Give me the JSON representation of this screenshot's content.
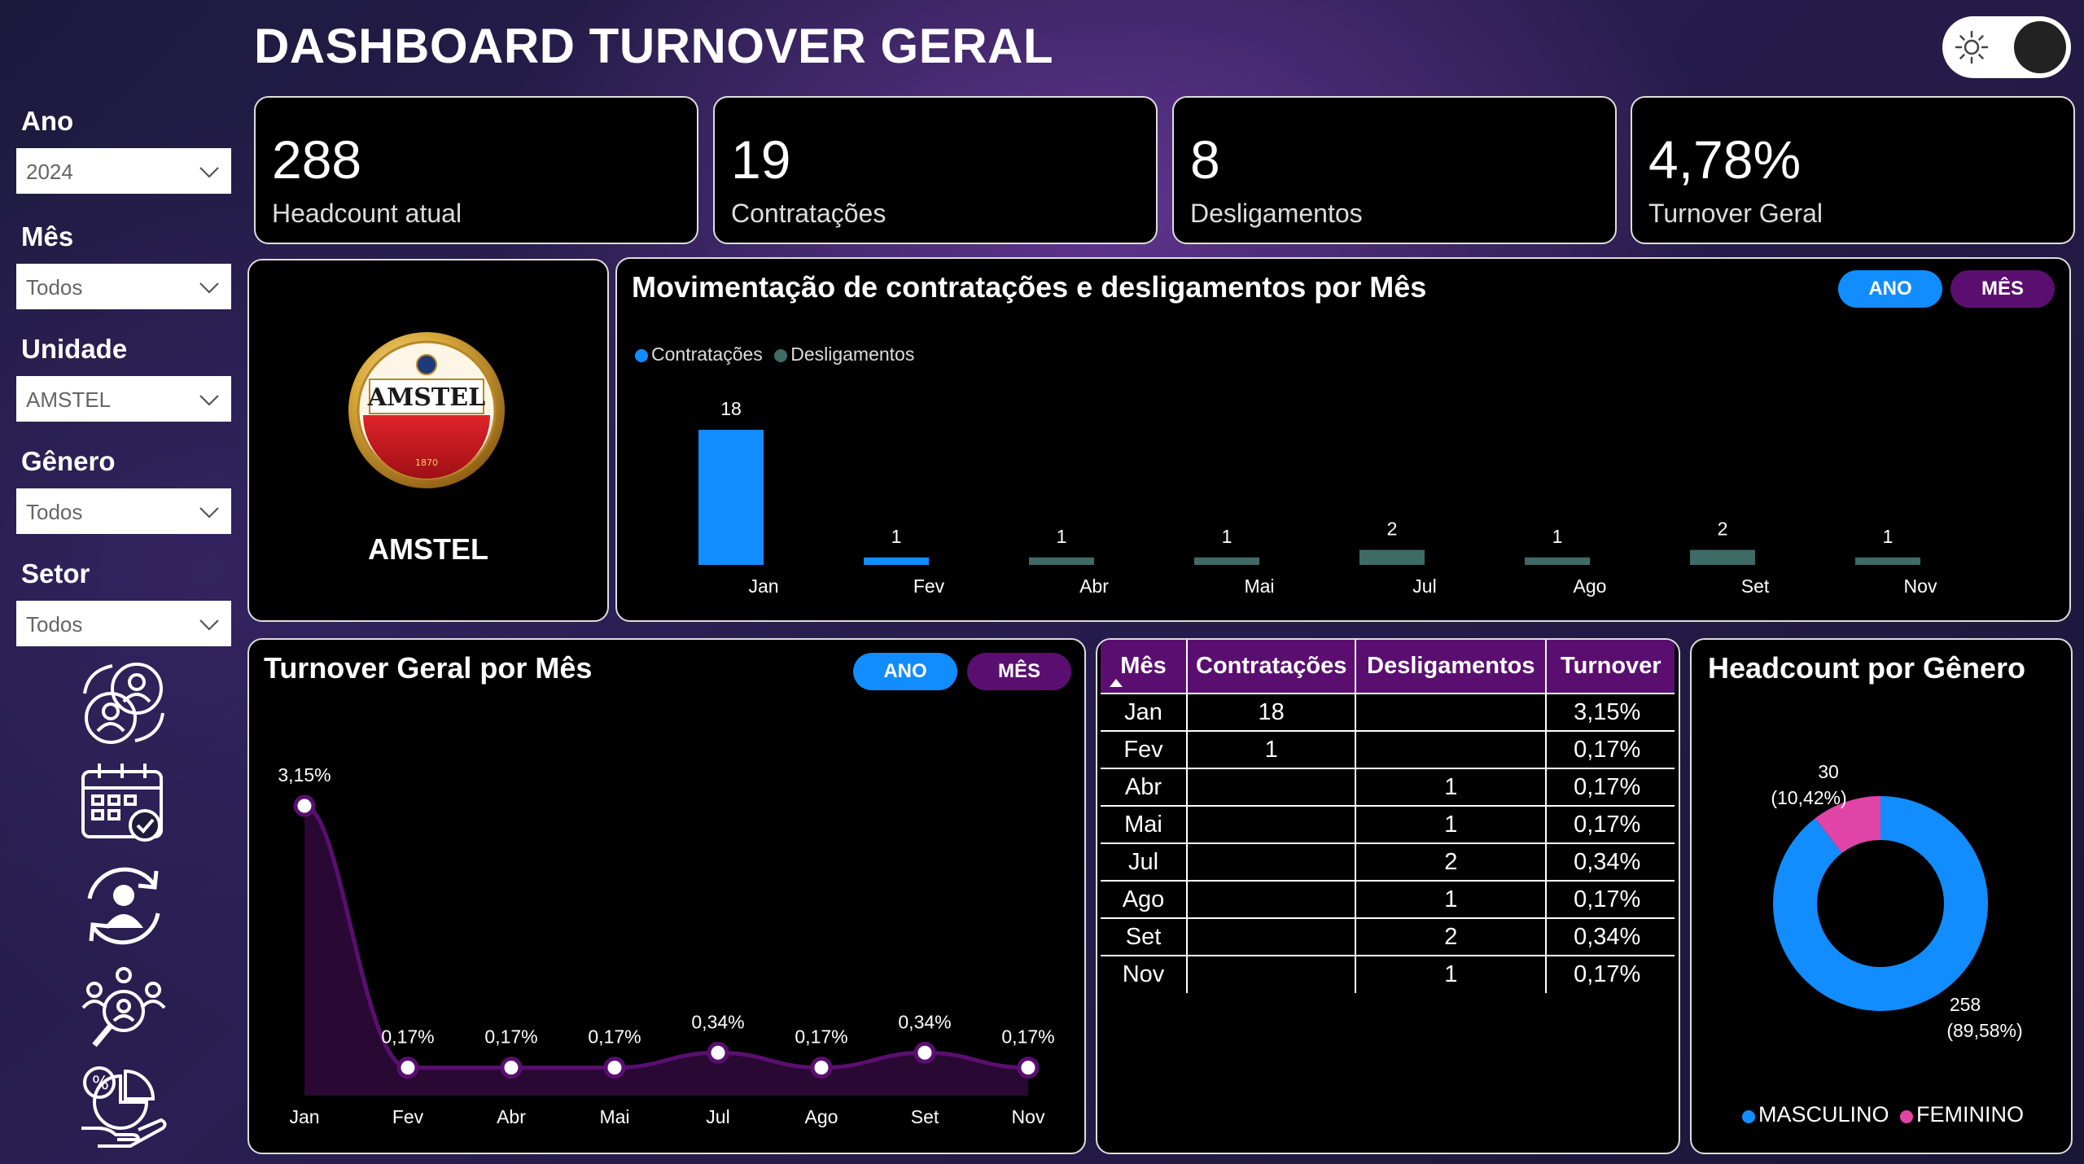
{
  "header": {
    "title": "DASHBOARD TURNOVER GERAL"
  },
  "filters": [
    {
      "label": "Ano",
      "value": "2024"
    },
    {
      "label": "Mês",
      "value": "Todos"
    },
    {
      "label": "Unidade",
      "value": "AMSTEL"
    },
    {
      "label": "Gênero",
      "value": "Todos"
    },
    {
      "label": "Setor",
      "value": "Todos"
    }
  ],
  "nav_icons": [
    "people-exchange-icon",
    "calendar-check-icon",
    "employee-rotation-icon",
    "team-search-icon",
    "percent-hand-icon"
  ],
  "kpis": [
    {
      "value": "288",
      "label": "Headcount atual"
    },
    {
      "value": "19",
      "label": "Contratações"
    },
    {
      "value": "8",
      "label": "Desligamentos"
    },
    {
      "value": "4,78%",
      "label": "Turnover Geral"
    }
  ],
  "brand": {
    "logo_text": "AMSTEL",
    "logo_year": "1870",
    "name": "AMSTEL"
  },
  "buttons": {
    "ano": "ANO",
    "mes": "MÊS"
  },
  "colors": {
    "contratacoes": "#118dff",
    "desligamentos": "#3f6b66",
    "line": "#5a0f70",
    "masculino": "#118dff",
    "feminino": "#e044a7"
  },
  "chart_data": [
    {
      "type": "bar",
      "title": "Movimentação de contratações e desligamentos por Mês",
      "categories": [
        "Jan",
        "Fev",
        "Abr",
        "Mai",
        "Jul",
        "Ago",
        "Set",
        "Nov"
      ],
      "series": [
        {
          "name": "Contratações",
          "values": [
            18,
            1,
            null,
            null,
            null,
            null,
            null,
            null
          ]
        },
        {
          "name": "Desligamentos",
          "values": [
            null,
            null,
            1,
            1,
            2,
            1,
            2,
            1
          ]
        }
      ],
      "ylim": [
        0,
        18
      ]
    },
    {
      "type": "area",
      "title": "Turnover Geral por Mês",
      "categories": [
        "Jan",
        "Fev",
        "Abr",
        "Mai",
        "Jul",
        "Ago",
        "Set",
        "Nov"
      ],
      "values": [
        3.15,
        0.17,
        0.17,
        0.17,
        0.34,
        0.17,
        0.34,
        0.17
      ],
      "labels": [
        "3,15%",
        "0,17%",
        "0,17%",
        "0,17%",
        "0,34%",
        "0,17%",
        "0,34%",
        "0,17%"
      ],
      "ylim": [
        0,
        3.15
      ]
    },
    {
      "type": "table",
      "columns": [
        "Mês",
        "Contratações",
        "Desligamentos",
        "Turnover"
      ],
      "rows": [
        [
          "Jan",
          "18",
          "",
          "3,15%"
        ],
        [
          "Fev",
          "1",
          "",
          "0,17%"
        ],
        [
          "Abr",
          "",
          "1",
          "0,17%"
        ],
        [
          "Mai",
          "",
          "1",
          "0,17%"
        ],
        [
          "Jul",
          "",
          "2",
          "0,34%"
        ],
        [
          "Ago",
          "",
          "1",
          "0,17%"
        ],
        [
          "Set",
          "",
          "2",
          "0,34%"
        ],
        [
          "Nov",
          "",
          "1",
          "0,17%"
        ]
      ]
    },
    {
      "type": "pie",
      "title": "Headcount por Gênero",
      "categories": [
        "MASCULINO",
        "FEMININO"
      ],
      "values": [
        258,
        30
      ],
      "labels": [
        "258",
        "30"
      ],
      "percents": [
        "(89,58%)",
        "(10,42%)"
      ]
    }
  ]
}
